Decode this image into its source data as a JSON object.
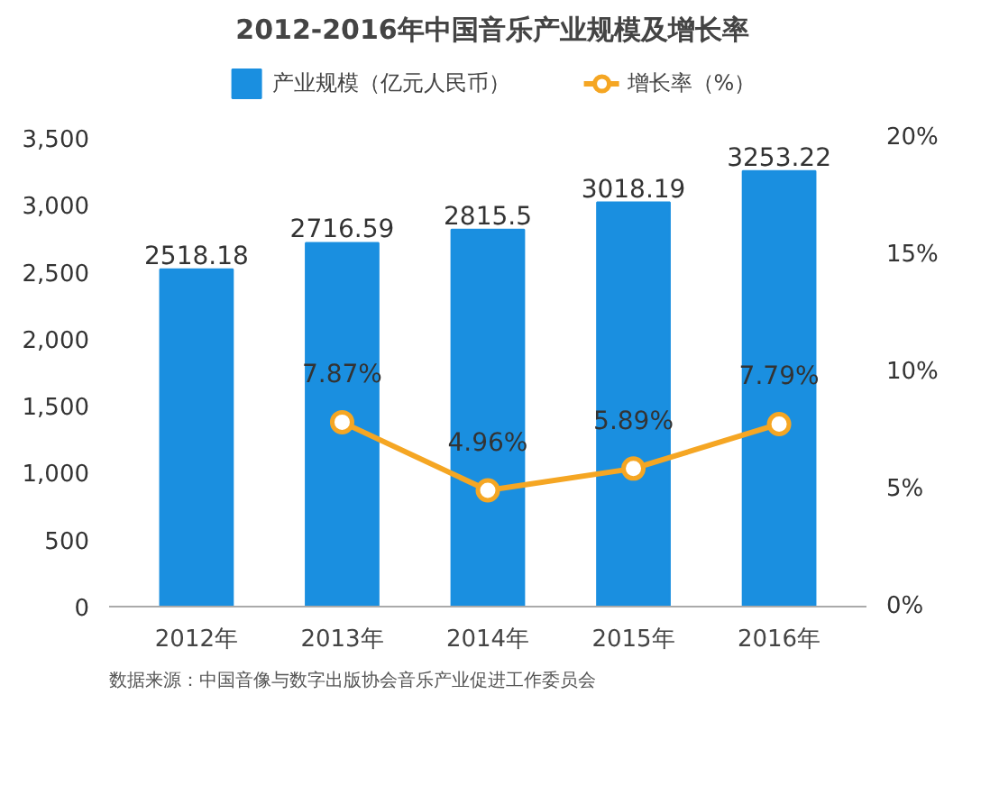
{
  "chart_data": {
    "type": "bar",
    "title": "2012-2016年中国音乐产业规模及增长率",
    "categories": [
      "2012年",
      "2013年",
      "2014年",
      "2015年",
      "2016年"
    ],
    "series": [
      {
        "name": "产业规模（亿元人民币）",
        "color": "#1a8fe0",
        "values": [
          2518.18,
          2716.59,
          2815.5,
          3018.19,
          3253.22
        ],
        "value_labels": [
          "2518.18",
          "2716.59",
          "2815.5",
          "3018.19",
          "3253.22"
        ]
      },
      {
        "name": "增长率（%）",
        "type": "line",
        "axis": "y2",
        "color": "#f5a623",
        "marker": "circle",
        "values": [
          null,
          7.87,
          4.96,
          5.89,
          7.79
        ],
        "value_labels": [
          null,
          "7.87%",
          "4.96%",
          "5.89%",
          "7.79%"
        ]
      }
    ],
    "ylim": [
      0,
      3500
    ],
    "yticks": [
      {
        "value": 0,
        "label": "0"
      },
      {
        "value": 500,
        "label": "500"
      },
      {
        "value": 1000,
        "label": "1,000"
      },
      {
        "value": 1500,
        "label": "1,500"
      },
      {
        "value": 2000,
        "label": "2,000"
      },
      {
        "value": 2500,
        "label": "2,500"
      },
      {
        "value": 3000,
        "label": "3,000"
      },
      {
        "value": 3500,
        "label": "3,500"
      }
    ],
    "y2lim": [
      0,
      20
    ],
    "y2ticks": [
      {
        "value": 0,
        "label": "0%"
      },
      {
        "value": 5,
        "label": "5%"
      },
      {
        "value": 10,
        "label": "10%"
      },
      {
        "value": 15,
        "label": "15%"
      },
      {
        "value": 20,
        "label": "20%"
      }
    ],
    "legend": "top",
    "grid": false,
    "annotations": [
      "数据来源：中国音像与数字出版协会音乐产业促进工作委员会"
    ]
  }
}
